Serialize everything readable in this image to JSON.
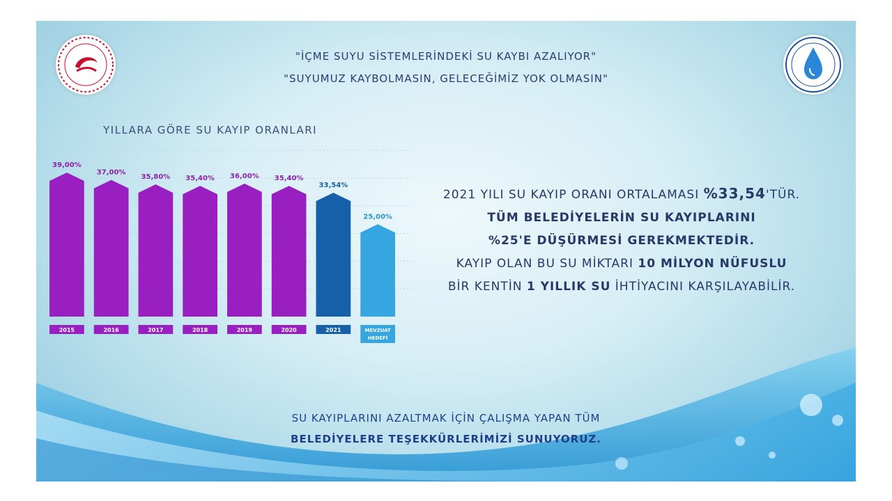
{
  "header": {
    "line1": "\"İÇME SUYU SİSTEMLERİNDEKİ SU KAYBI AZALIYOR\"",
    "line2": "\"SUYUMUZ KAYBOLMASIN, GELECEĞİMİZ YOK OLMASIN\""
  },
  "logos": {
    "left": "ministry-emblem-icon",
    "right": "water-drop-seal-icon"
  },
  "chart_data": {
    "type": "bar",
    "title": "YILLARA GÖRE SU KAYIP ORANLARI",
    "categories": [
      "2015",
      "2016",
      "2017",
      "2018",
      "2019",
      "2020",
      "2021",
      "MEVZUAT HEDEFİ"
    ],
    "values": [
      39.0,
      37.0,
      35.8,
      35.4,
      36.0,
      35.4,
      33.54,
      25.0
    ],
    "labels": [
      "39,00%",
      "37,00%",
      "35,80%",
      "35,40%",
      "36,00%",
      "35,40%",
      "33,54%",
      "25,00%"
    ],
    "colors": [
      "#9a1fc0",
      "#9a1fc0",
      "#9a1fc0",
      "#9a1fc0",
      "#9a1fc0",
      "#9a1fc0",
      "#1560a8",
      "#35a6df"
    ],
    "label_colors": [
      "#8a25a8",
      "#8a25a8",
      "#8a25a8",
      "#8a25a8",
      "#8a25a8",
      "#8a25a8",
      "#165f9e",
      "#2b95cc"
    ],
    "xlabel": "",
    "ylabel": "",
    "ylim": [
      0,
      40
    ],
    "grid": true,
    "legend": "none"
  },
  "info": {
    "l1_pre": "2021 YILI SU KAYIP ORANI ORTALAMASI ",
    "l1_bold": "%33,54",
    "l1_post": "'TÜR.",
    "l2": "TÜM BELEDİYELERİN SU KAYIPLARINI",
    "l3": "%25'E DÜŞÜRMESİ GEREKMEKTEDİR.",
    "l4_pre": "KAYIP OLAN BU SU MİKTARI ",
    "l4_bold": "10 MİLYON NÜFUSLU",
    "l5_pre": "BİR KENTİN ",
    "l5_bold": "1 YILLIK SU",
    "l5_post": " İHTİYACINI KARŞILAYABİLİR."
  },
  "footer": {
    "line1": "SU KAYIPLARINI AZALTMAK İÇİN ÇALIŞMA YAPAN TÜM",
    "line2": "BELEDİYELERE TEŞEKKÜRLERİMİZİ SUNUYORUZ."
  },
  "colors": {
    "text_dark": "#283867",
    "purple": "#9a1fc0",
    "dark_blue": "#1560a8",
    "light_blue": "#35a6df"
  }
}
